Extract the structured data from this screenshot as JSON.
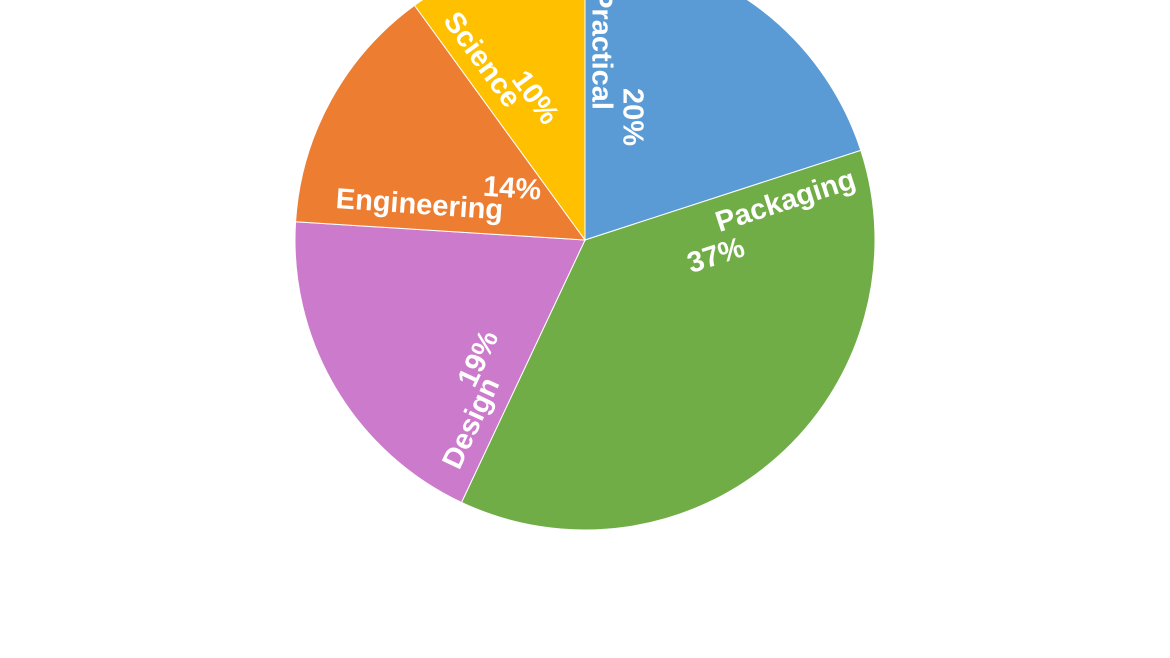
{
  "chart_data": {
    "type": "pie",
    "categories": [
      "Practical",
      "Packaging",
      "Design",
      "Engineering",
      "Science"
    ],
    "values": [
      20,
      37,
      19,
      14,
      10
    ],
    "value_labels": [
      "20%",
      "37%",
      "19%",
      "14%",
      "10%"
    ],
    "colors": [
      "#5b9bd5",
      "#70ad47",
      "#cc7acc",
      "#ed7d31",
      "#ffc000"
    ]
  }
}
